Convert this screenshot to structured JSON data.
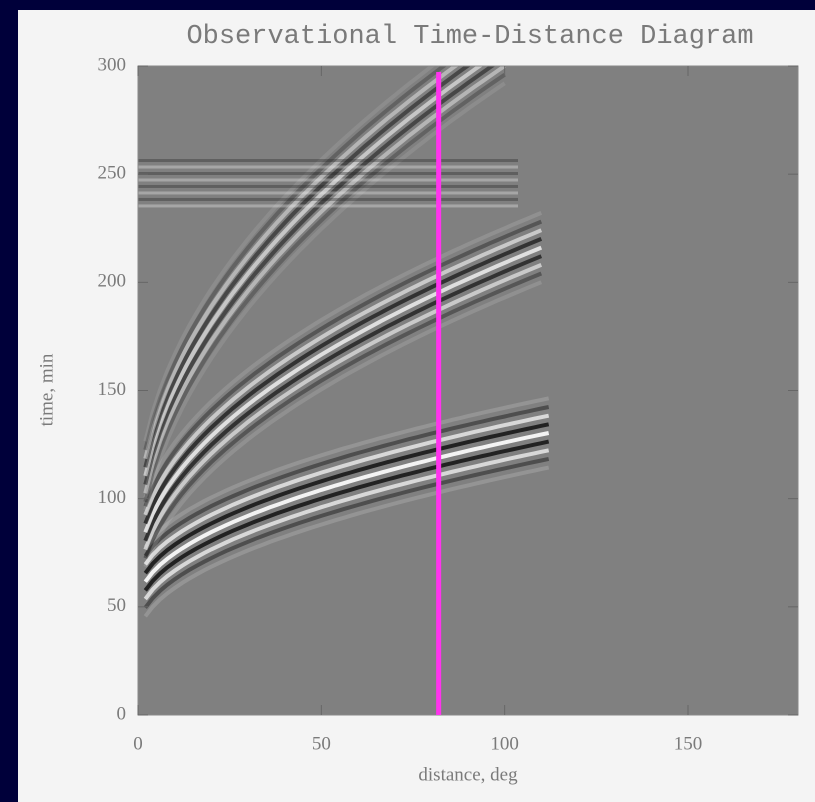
{
  "chart_data": {
    "type": "image",
    "title": "Observational Time-Distance Diagram",
    "xlabel": "distance, deg",
    "ylabel": "time, min",
    "xlim": [
      0,
      180
    ],
    "ylim": [
      0,
      300
    ],
    "xticks": [
      0,
      50,
      100,
      150
    ],
    "yticks": [
      0,
      50,
      100,
      150,
      200,
      250,
      300
    ],
    "markers": [
      {
        "x": 82,
        "color": "#ff33ee"
      }
    ],
    "background": "#808080"
  }
}
